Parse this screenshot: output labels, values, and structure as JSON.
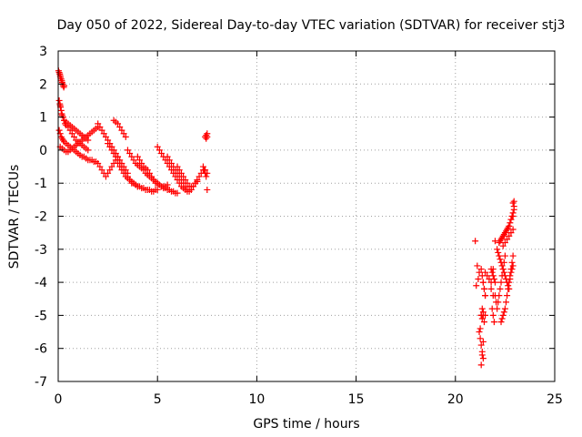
{
  "chart_data": {
    "type": "scatter",
    "title": "Day 050 of 2022, Sidereal Day-to-day VTEC variation (SDTVAR) for receiver stj3",
    "xlabel": "GPS time / hours",
    "ylabel": "SDTVAR / TECUs",
    "xlim": [
      0,
      25
    ],
    "ylim": [
      -7,
      3
    ],
    "xticks": [
      0,
      5,
      10,
      15,
      20,
      25
    ],
    "yticks": [
      -7,
      -6,
      -5,
      -4,
      -3,
      -2,
      -1,
      0,
      1,
      2,
      3
    ],
    "grid": true,
    "marker": "+",
    "color": "#ff0000",
    "series": [
      {
        "name": "SDTVAR",
        "x": [
          0.02,
          0.05,
          0.08,
          0.1,
          0.12,
          0.15,
          0.18,
          0.2,
          0.22,
          0.25,
          0.28,
          0.3,
          0.05,
          0.08,
          0.1,
          0.12,
          0.15,
          0.18,
          0.2,
          0.25,
          0.3,
          0.35,
          0.4,
          0.05,
          0.1,
          0.15,
          0.2,
          0.25,
          0.3,
          0.4,
          0.5,
          0.6,
          0.7,
          0.8,
          0.9,
          1.0,
          1.1,
          1.2,
          1.3,
          1.4,
          1.5,
          1.6,
          1.7,
          1.8,
          1.9,
          2.0,
          0.3,
          0.4,
          0.5,
          0.6,
          0.7,
          0.8,
          0.9,
          1.0,
          1.1,
          1.2,
          1.3,
          1.4,
          1.5,
          0.1,
          0.2,
          0.3,
          0.4,
          0.5,
          0.6,
          0.7,
          0.8,
          0.9,
          1.0,
          1.1,
          1.2,
          1.3,
          1.4,
          1.5,
          1.6,
          1.7,
          1.8,
          1.9,
          2.0,
          0.5,
          0.6,
          0.7,
          0.8,
          0.9,
          1.0,
          1.1,
          1.2,
          1.3,
          1.4,
          1.5,
          2.0,
          2.1,
          2.2,
          2.3,
          2.4,
          2.5,
          2.6,
          2.7,
          2.8,
          2.9,
          3.0,
          3.1,
          3.2,
          3.3,
          3.4,
          3.5,
          2.1,
          2.2,
          2.3,
          2.4,
          2.5,
          2.6,
          2.7,
          2.8,
          2.9,
          3.0,
          2.5,
          2.6,
          2.7,
          2.8,
          2.9,
          3.0,
          3.1,
          3.2,
          3.3,
          3.4,
          3.5,
          3.6,
          3.7,
          3.8,
          3.9,
          4.0,
          2.8,
          2.9,
          3.0,
          3.1,
          3.2,
          3.3,
          3.4,
          3.0,
          3.1,
          3.2,
          3.3,
          3.4,
          3.5,
          3.6,
          3.7,
          3.8,
          3.9,
          4.0,
          4.1,
          4.2,
          4.3,
          4.4,
          4.5,
          4.6,
          4.7,
          4.8,
          4.9,
          5.0,
          3.5,
          3.6,
          3.7,
          3.8,
          3.9,
          4.0,
          4.1,
          4.2,
          4.3,
          4.4,
          4.5,
          4.6,
          4.7,
          4.8,
          4.9,
          5.0,
          5.1,
          5.2,
          5.3,
          5.4,
          5.5,
          4.0,
          4.1,
          4.2,
          4.3,
          4.4,
          4.5,
          4.6,
          4.7,
          4.8,
          4.9,
          5.0,
          5.1,
          5.2,
          5.3,
          5.4,
          5.5,
          5.6,
          5.7,
          5.8,
          5.9,
          6.0,
          5.0,
          5.1,
          5.2,
          5.3,
          5.4,
          5.5,
          5.6,
          5.7,
          5.8,
          5.9,
          6.0,
          6.1,
          6.2,
          6.3,
          6.4,
          6.5,
          5.5,
          5.6,
          5.7,
          5.8,
          5.9,
          6.0,
          6.1,
          6.2,
          6.3,
          6.4,
          6.5,
          6.6,
          6.7,
          6.8,
          6.9,
          7.0,
          6.0,
          6.1,
          6.2,
          6.3,
          6.4,
          6.5,
          6.6,
          6.7,
          6.8,
          6.9,
          7.0,
          7.1,
          7.2,
          7.3,
          7.4,
          7.5,
          7.4,
          7.45,
          7.5,
          7.45,
          7.5,
          7.3,
          7.35,
          7.4,
          7.45,
          7.5,
          21.0,
          21.1,
          21.2,
          21.05,
          21.15,
          21.2,
          21.25,
          21.3,
          21.35,
          21.4,
          21.3,
          21.35,
          21.4,
          21.25,
          21.3,
          21.3,
          21.35,
          21.4,
          21.45,
          21.5,
          21.4,
          21.45,
          21.5,
          21.3,
          21.35,
          21.4,
          21.45,
          21.5,
          21.35,
          21.4,
          21.5,
          21.6,
          21.7,
          21.8,
          21.8,
          21.9,
          21.9,
          22.0,
          21.8,
          21.85,
          21.9,
          21.95,
          22.0,
          21.85,
          21.9,
          21.95,
          22.0,
          22.05,
          22.1,
          22.15,
          22.2,
          22.25,
          22.3,
          22.35,
          22.4,
          22.45,
          22.5,
          22.1,
          22.15,
          22.2,
          22.25,
          22.3,
          22.35,
          22.4,
          22.45,
          22.5,
          22.55,
          22.6,
          22.65,
          22.7,
          22.75,
          22.8,
          22.85,
          22.9,
          22.3,
          22.35,
          22.4,
          22.45,
          22.5,
          22.55,
          22.6,
          22.65,
          22.7,
          22.75,
          22.8,
          22.85,
          22.9,
          22.2,
          22.25,
          22.3,
          22.35,
          22.4,
          22.45,
          22.5,
          22.55,
          22.6,
          22.65,
          22.7,
          22.75,
          22.8,
          22.85,
          22.9,
          22.95,
          22.4,
          22.5,
          22.6,
          22.7,
          22.8,
          22.9,
          22.9,
          22.95,
          22.95,
          22.9
        ],
        "y": [
          2.4,
          2.35,
          2.3,
          2.25,
          2.2,
          2.15,
          2.1,
          2.05,
          2.0,
          1.95,
          1.9,
          1.95,
          1.5,
          1.4,
          1.35,
          1.3,
          1.2,
          1.1,
          1.05,
          1.0,
          0.9,
          0.8,
          0.75,
          0.6,
          0.5,
          0.4,
          0.35,
          0.3,
          0.25,
          0.2,
          0.15,
          0.1,
          0.05,
          0.0,
          -0.05,
          -0.1,
          -0.15,
          -0.2,
          -0.2,
          -0.25,
          -0.3,
          -0.3,
          -0.3,
          -0.35,
          -0.35,
          -0.4,
          0.9,
          0.85,
          0.8,
          0.75,
          0.7,
          0.65,
          0.6,
          0.55,
          0.5,
          0.45,
          0.4,
          0.35,
          0.3,
          0.1,
          0.05,
          0.0,
          -0.05,
          -0.05,
          0.0,
          0.05,
          0.1,
          0.15,
          0.2,
          0.25,
          0.3,
          0.35,
          0.4,
          0.45,
          0.5,
          0.55,
          0.6,
          0.65,
          0.7,
          0.7,
          0.6,
          0.5,
          0.4,
          0.3,
          0.25,
          0.2,
          0.15,
          0.1,
          0.05,
          0.0,
          0.8,
          0.7,
          0.6,
          0.5,
          0.4,
          0.3,
          0.2,
          0.1,
          0.0,
          -0.1,
          -0.2,
          -0.3,
          -0.4,
          -0.5,
          -0.6,
          -0.7,
          -0.5,
          -0.6,
          -0.7,
          -0.8,
          -0.7,
          -0.6,
          -0.5,
          -0.4,
          -0.3,
          -0.2,
          0.2,
          0.1,
          0.0,
          -0.1,
          -0.2,
          -0.3,
          -0.4,
          -0.5,
          -0.6,
          -0.7,
          -0.8,
          -0.9,
          -1.0,
          -1.0,
          -1.05,
          -1.1,
          0.9,
          0.85,
          0.8,
          0.7,
          0.6,
          0.5,
          0.4,
          -0.4,
          -0.5,
          -0.6,
          -0.7,
          -0.8,
          -0.85,
          -0.9,
          -0.95,
          -1.0,
          -1.05,
          -1.1,
          -1.1,
          -1.15,
          -1.15,
          -1.2,
          -1.2,
          -1.2,
          -1.25,
          -1.25,
          -1.2,
          -1.2,
          0.0,
          -0.1,
          -0.2,
          -0.3,
          -0.4,
          -0.45,
          -0.5,
          -0.55,
          -0.6,
          -0.7,
          -0.75,
          -0.8,
          -0.85,
          -0.9,
          -0.95,
          -1.0,
          -1.05,
          -1.1,
          -1.15,
          -1.1,
          -1.05,
          -0.2,
          -0.3,
          -0.4,
          -0.5,
          -0.55,
          -0.6,
          -0.7,
          -0.8,
          -0.9,
          -1.0,
          -1.0,
          -1.05,
          -1.1,
          -1.1,
          -1.15,
          -1.2,
          -1.2,
          -1.25,
          -1.25,
          -1.3,
          -1.3,
          0.1,
          0.0,
          -0.1,
          -0.2,
          -0.3,
          -0.4,
          -0.5,
          -0.6,
          -0.7,
          -0.8,
          -0.9,
          -1.0,
          -1.1,
          -1.15,
          -1.2,
          -1.25,
          -0.2,
          -0.3,
          -0.4,
          -0.5,
          -0.6,
          -0.7,
          -0.8,
          -0.9,
          -1.0,
          -1.1,
          -1.2,
          -1.25,
          -1.2,
          -1.1,
          -1.0,
          -0.95,
          -0.5,
          -0.6,
          -0.7,
          -0.8,
          -0.9,
          -1.0,
          -1.1,
          -1.1,
          -1.1,
          -1.0,
          -0.9,
          -0.8,
          -0.7,
          -0.6,
          -0.6,
          -0.7,
          0.4,
          0.45,
          0.4,
          0.35,
          0.5,
          -0.5,
          -0.6,
          -0.7,
          -0.8,
          -1.2,
          -2.75,
          -3.5,
          -3.7,
          -4.1,
          -3.9,
          -5.5,
          -5.7,
          -5.9,
          -6.1,
          -6.3,
          -6.5,
          -6.2,
          -5.8,
          -5.4,
          -5.0,
          -3.6,
          -3.8,
          -4.0,
          -4.2,
          -4.4,
          -4.0,
          -4.2,
          -4.4,
          -5.0,
          -5.1,
          -4.9,
          -5.2,
          -5.0,
          -4.8,
          -5.0,
          -3.7,
          -3.8,
          -3.9,
          -4.0,
          -4.2,
          -3.6,
          -4.4,
          -2.75,
          -3.6,
          -3.7,
          -3.8,
          -3.9,
          -4.0,
          -4.8,
          -5.0,
          -5.2,
          -4.4,
          -4.6,
          -4.8,
          -4.6,
          -4.4,
          -4.2,
          -4.0,
          -3.8,
          -3.6,
          -3.4,
          -3.2,
          -3.0,
          -3.1,
          -3.2,
          -3.3,
          -3.4,
          -3.5,
          -3.6,
          -3.7,
          -3.8,
          -3.9,
          -4.0,
          -4.1,
          -4.2,
          -3.9,
          -3.7,
          -3.6,
          -3.5,
          -5.2,
          -5.1,
          -5.0,
          -4.9,
          -4.8,
          -4.6,
          -4.4,
          -4.2,
          -4.0,
          -3.8,
          -3.6,
          -3.4,
          -3.2,
          -2.8,
          -2.75,
          -2.7,
          -2.65,
          -2.6,
          -2.55,
          -2.5,
          -2.45,
          -2.4,
          -2.35,
          -2.3,
          -2.2,
          -2.1,
          -2.0,
          -1.9,
          -1.8,
          -2.9,
          -2.8,
          -2.7,
          -2.6,
          -2.5,
          -2.4,
          -1.6,
          -1.55,
          -1.7,
          -2.0
        ]
      }
    ]
  }
}
